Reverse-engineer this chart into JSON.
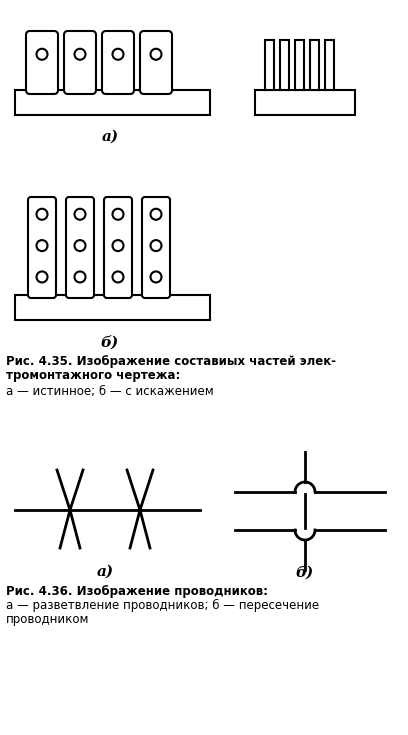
{
  "bg_color": "#ffffff",
  "line_color": "#000000",
  "fig_width": 4.08,
  "fig_height": 7.35,
  "caption1_line1": "Рис. 4.35. Изображение составиых частей элек-",
  "caption1_line2": "тромонтажного чертежа:",
  "caption1_line3": "а — истинное; б — с искажением",
  "caption2_line1": "Рис. 4.36. Изображение проводников:",
  "caption2_line2": "а — разветвление проводников; б — пересечение",
  "caption2_line3": "проводником"
}
